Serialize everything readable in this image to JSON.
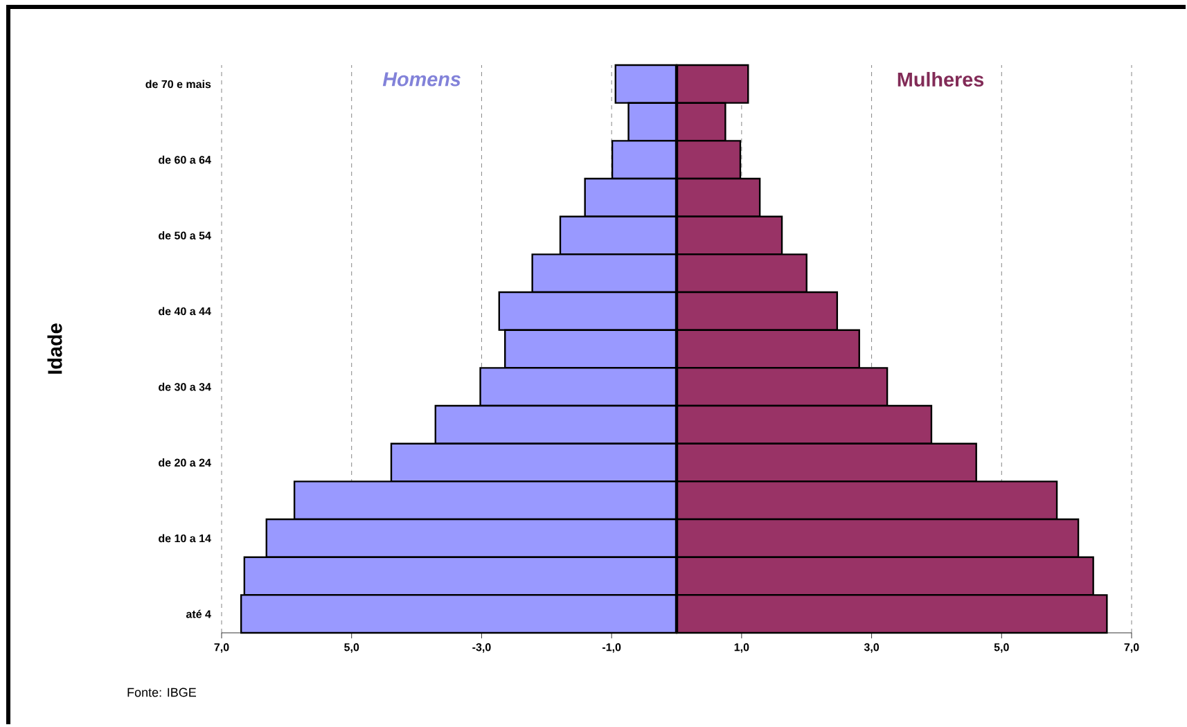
{
  "chart_data": {
    "type": "bar",
    "orientation": "horizontal",
    "stacked": true,
    "ylabel": "Idade",
    "categories": [
      "de 70 e mais",
      null,
      "de 60 a 64",
      null,
      "de 50 a 54",
      null,
      "de 40 a 44",
      null,
      "de 30 a 34",
      null,
      "de 20 a 24",
      null,
      "de 10 a 14",
      null,
      "até 4"
    ],
    "series": [
      {
        "name": "Homens",
        "color": "#9999ff",
        "values": [
          -0.94,
          -0.74,
          -0.99,
          -1.41,
          -1.79,
          -2.22,
          -2.73,
          -2.64,
          -3.02,
          -3.71,
          -4.39,
          -5.88,
          -6.31,
          -6.65,
          -6.7
        ]
      },
      {
        "name": "Mulheres",
        "color": "#993366",
        "values": [
          1.1,
          0.75,
          0.98,
          1.28,
          1.62,
          2.0,
          2.47,
          2.81,
          3.24,
          3.92,
          4.61,
          5.85,
          6.18,
          6.41,
          6.62
        ]
      }
    ],
    "xlim": [
      -7,
      7
    ],
    "xticks": [
      {
        "value": -7,
        "label": "7,0"
      },
      {
        "value": -5,
        "label": "5,0"
      },
      {
        "value": -3,
        "label": "-3,0"
      },
      {
        "value": -1,
        "label": "-1,0"
      },
      {
        "value": 1,
        "label": "1,0"
      },
      {
        "value": 3,
        "label": "3,0"
      },
      {
        "value": 5,
        "label": "5,0"
      },
      {
        "value": 7,
        "label": "7,0"
      }
    ],
    "grid": "x",
    "ref_lines": [
      {
        "axis": "x",
        "value": 0,
        "color": "#000000"
      }
    ],
    "annotations": [
      "Fonte: IBGE"
    ]
  }
}
